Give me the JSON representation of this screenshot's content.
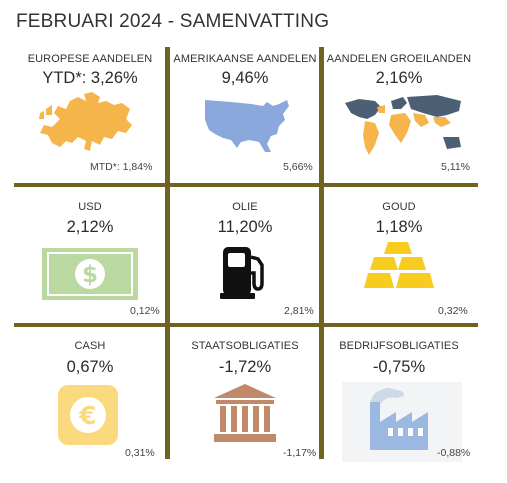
{
  "title": "FEBRUARI 2024 - SAMENVATTING",
  "colors": {
    "grid": "#6f6320",
    "accent_orange": "#f5b54a",
    "accent_blue": "#8aa8dc",
    "money_green": "#b9d9a0",
    "gold": "#f7cc1f",
    "bank_brown": "#c08a6a",
    "factory_blue": "#9bb8e3"
  },
  "cells": [
    {
      "category": "EUROPESE AANDELEN",
      "ytd": "YTD*: 3,26%",
      "mtd": "MTD*: 1,84%",
      "icon": "europe-map-icon"
    },
    {
      "category": "AMERIKAANSE AANDELEN",
      "ytd": "9,46%",
      "mtd": "5,66%",
      "icon": "usa-map-icon"
    },
    {
      "category": "AANDELEN GROEILANDEN",
      "ytd": "2,16%",
      "mtd": "5,11%",
      "icon": "world-map-icon"
    },
    {
      "category": "USD",
      "ytd": "2,12%",
      "mtd": "0,12%",
      "icon": "dollar-bill-icon"
    },
    {
      "category": "OLIE",
      "ytd": "11,20%",
      "mtd": "2,81%",
      "icon": "fuel-pump-icon"
    },
    {
      "category": "GOUD",
      "ytd": "1,18%",
      "mtd": "0,32%",
      "icon": "gold-bars-icon"
    },
    {
      "category": "CASH",
      "ytd": "0,67%",
      "mtd": "0,31%",
      "icon": "euro-coin-icon"
    },
    {
      "category": "STAATSOBLIGATIES",
      "ytd": "-1,72%",
      "mtd": "-1,17%",
      "icon": "bank-building-icon"
    },
    {
      "category": "BEDRIJFSOBLIGATIES",
      "ytd": "-0,75%",
      "mtd": "-0,88%",
      "icon": "factory-icon"
    }
  ]
}
